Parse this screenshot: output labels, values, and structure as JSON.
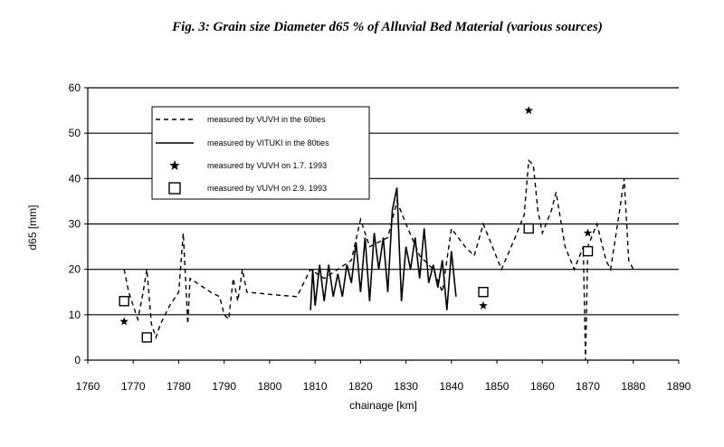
{
  "chart_data": {
    "type": "line",
    "title": "Fig. 3: Grain size Diameter d65 % of Alluvial Bed Material (various sources)",
    "xlabel": "chainage [km]",
    "ylabel": "d65 [mm]",
    "xlim": [
      1760,
      1890
    ],
    "ylim": [
      0,
      60
    ],
    "xticks": [
      1760,
      1770,
      1780,
      1790,
      1800,
      1810,
      1820,
      1830,
      1840,
      1850,
      1860,
      1870,
      1880,
      1890
    ],
    "yticks": [
      0,
      10,
      20,
      30,
      40,
      50,
      60
    ],
    "grid": "horizontal",
    "legend_position": "top-left",
    "series": [
      {
        "name": "measured by VUVH in the 60ties",
        "style": "dashed",
        "color": "#000000",
        "points": [
          [
            1768,
            20
          ],
          [
            1769,
            15
          ],
          [
            1770,
            12
          ],
          [
            1771,
            9
          ],
          [
            1772,
            14
          ],
          [
            1773,
            20
          ],
          [
            1774,
            8
          ],
          [
            1775,
            5
          ],
          [
            1776,
            8
          ],
          [
            1778,
            12
          ],
          [
            1780,
            15
          ],
          [
            1781,
            28
          ],
          [
            1782,
            8
          ],
          [
            1782.5,
            18
          ],
          [
            1784,
            17
          ],
          [
            1787,
            15
          ],
          [
            1789,
            14
          ],
          [
            1790,
            10
          ],
          [
            1791,
            9
          ],
          [
            1792,
            18
          ],
          [
            1793,
            13
          ],
          [
            1794,
            20
          ],
          [
            1795,
            15
          ],
          [
            1800,
            14.5
          ],
          [
            1806,
            14
          ],
          [
            1809,
            20
          ],
          [
            1812,
            18
          ],
          [
            1818,
            22
          ],
          [
            1820,
            31
          ],
          [
            1822,
            25
          ],
          [
            1826,
            27
          ],
          [
            1828,
            35
          ],
          [
            1830,
            30
          ],
          [
            1833,
            23
          ],
          [
            1836,
            20
          ],
          [
            1838,
            15
          ],
          [
            1840,
            29
          ],
          [
            1843,
            25
          ],
          [
            1845,
            23
          ],
          [
            1847,
            30
          ],
          [
            1849,
            25
          ],
          [
            1851,
            20
          ],
          [
            1854,
            27
          ],
          [
            1856,
            32
          ],
          [
            1857,
            44
          ],
          [
            1858,
            43
          ],
          [
            1859,
            33
          ],
          [
            1860,
            28
          ],
          [
            1862,
            33
          ],
          [
            1863,
            37
          ],
          [
            1865,
            25
          ],
          [
            1867,
            20
          ],
          [
            1869,
            25
          ],
          [
            1869.5,
            0
          ],
          [
            1870,
            25
          ],
          [
            1872,
            30
          ],
          [
            1874,
            22
          ],
          [
            1875,
            20
          ],
          [
            1877,
            33
          ],
          [
            1878,
            40
          ],
          [
            1879,
            22
          ],
          [
            1880,
            20
          ]
        ]
      },
      {
        "name": "measured by VITUKI in the 80ties",
        "style": "solid",
        "color": "#000000",
        "points": [
          [
            1809,
            11
          ],
          [
            1809.5,
            20
          ],
          [
            1810,
            12
          ],
          [
            1811,
            21
          ],
          [
            1812,
            13
          ],
          [
            1813,
            21
          ],
          [
            1814,
            14
          ],
          [
            1815,
            19
          ],
          [
            1816,
            14
          ],
          [
            1817,
            21
          ],
          [
            1818,
            17
          ],
          [
            1819,
            26
          ],
          [
            1820,
            15
          ],
          [
            1821,
            27
          ],
          [
            1822,
            13
          ],
          [
            1823,
            28
          ],
          [
            1824,
            20
          ],
          [
            1825,
            27
          ],
          [
            1826,
            15
          ],
          [
            1827,
            33
          ],
          [
            1828,
            38
          ],
          [
            1829,
            13
          ],
          [
            1830,
            25
          ],
          [
            1831,
            20
          ],
          [
            1832,
            27
          ],
          [
            1833,
            18
          ],
          [
            1834,
            29
          ],
          [
            1835,
            17
          ],
          [
            1836,
            21
          ],
          [
            1837,
            16
          ],
          [
            1838,
            22
          ],
          [
            1839,
            11
          ],
          [
            1840,
            24
          ],
          [
            1841,
            14
          ]
        ]
      },
      {
        "name": "measured by VUVH on 1.7. 1993",
        "marker": "star",
        "color": "#000000",
        "points": [
          [
            1768,
            8.5
          ],
          [
            1773,
            5
          ],
          [
            1847,
            12
          ],
          [
            1857,
            55
          ],
          [
            1870,
            28
          ]
        ]
      },
      {
        "name": "measured by VUVH on 2.9. 1993",
        "marker": "square",
        "color": "#000000",
        "points": [
          [
            1768,
            13
          ],
          [
            1773,
            5
          ],
          [
            1847,
            15
          ],
          [
            1857,
            29
          ],
          [
            1870,
            24
          ]
        ]
      }
    ]
  }
}
